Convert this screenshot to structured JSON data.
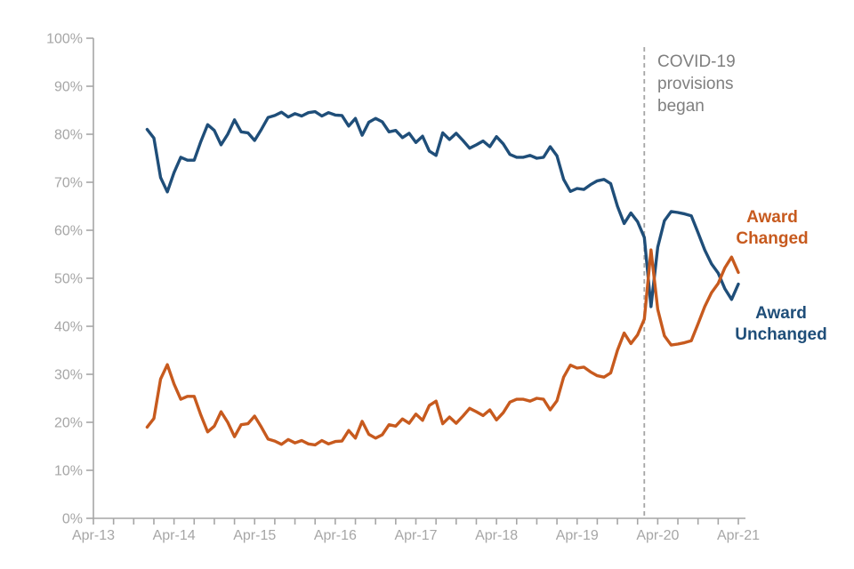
{
  "page": {
    "background_color": "#ffffff"
  },
  "chart_data": {
    "type": "line",
    "title": "",
    "grid": false,
    "legend_position": "labels-at-line-ends",
    "x_axis": {
      "tick_labels": [
        "Apr-13",
        "Apr-14",
        "Apr-15",
        "Apr-16",
        "Apr-17",
        "Apr-18",
        "Apr-19",
        "Apr-20",
        "Apr-21"
      ],
      "minor_tick_interval_months": 3,
      "color": "#A6A6A6"
    },
    "y_axis": {
      "tick_labels": [
        "100%",
        "90%",
        "80%",
        "70%",
        "60%",
        "50%",
        "40%",
        "30%",
        "20%",
        "10%",
        "0%"
      ],
      "min": 0,
      "max": 100,
      "unit": "%",
      "color": "#A6A6A6"
    },
    "series_start_month": "Dec-13",
    "series_frequency": "monthly",
    "series": [
      {
        "name": "Award Unchanged",
        "label": "Award\nUnchanged",
        "color": "#1F4E79",
        "values": [
          81.0,
          79.2,
          71.0,
          68.0,
          72.0,
          75.2,
          74.6,
          74.6,
          78.5,
          82.0,
          80.8,
          77.8,
          80.0,
          83.0,
          80.5,
          80.3,
          78.7,
          81.0,
          83.5,
          83.9,
          84.6,
          83.6,
          84.3,
          83.8,
          84.5,
          84.7,
          83.8,
          84.5,
          84.0,
          83.9,
          81.7,
          83.3,
          79.8,
          82.5,
          83.3,
          82.6,
          80.5,
          80.8,
          79.3,
          80.2,
          78.3,
          79.6,
          76.5,
          75.6,
          80.3,
          78.9,
          80.2,
          78.7,
          77.1,
          77.8,
          78.6,
          77.4,
          79.5,
          78.0,
          75.8,
          75.2,
          75.2,
          75.6,
          75.0,
          75.2,
          77.4,
          75.5,
          70.6,
          68.1,
          68.7,
          68.5,
          69.5,
          70.3,
          70.6,
          69.7,
          65.0,
          61.4,
          63.6,
          61.8,
          58.5,
          44.1,
          56.5,
          62.0,
          63.9,
          63.7,
          63.4,
          63.0,
          59.5,
          55.9,
          53.0,
          51.1,
          47.8,
          45.6,
          48.8
        ]
      },
      {
        "name": "Award Changed",
        "label": "Award\nChanged",
        "color": "#C75A1E",
        "values": [
          19.0,
          20.8,
          29.0,
          32.0,
          28.0,
          24.8,
          25.4,
          25.4,
          21.5,
          18.0,
          19.2,
          22.2,
          20.0,
          17.0,
          19.5,
          19.7,
          21.3,
          19.0,
          16.5,
          16.1,
          15.4,
          16.4,
          15.7,
          16.2,
          15.5,
          15.3,
          16.2,
          15.5,
          16.0,
          16.1,
          18.3,
          16.7,
          20.2,
          17.5,
          16.7,
          17.4,
          19.5,
          19.2,
          20.7,
          19.8,
          21.7,
          20.4,
          23.5,
          24.4,
          19.7,
          21.1,
          19.8,
          21.3,
          22.9,
          22.2,
          21.4,
          22.6,
          20.5,
          22.0,
          24.2,
          24.8,
          24.8,
          24.4,
          25.0,
          24.8,
          22.6,
          24.5,
          29.4,
          31.9,
          31.3,
          31.5,
          30.5,
          29.7,
          29.4,
          30.3,
          35.0,
          38.6,
          36.4,
          38.2,
          41.5,
          55.9,
          43.5,
          38.0,
          36.1,
          36.3,
          36.6,
          37.0,
          40.5,
          44.1,
          47.0,
          48.9,
          52.2,
          54.4,
          51.2
        ]
      }
    ],
    "annotation": {
      "text": "COVID-19\nprovisions\nbegan",
      "vline_month": "Feb-20",
      "vline_style": "dashed",
      "color": "#7F7F7F",
      "line_color": "#A6A6A6"
    }
  }
}
